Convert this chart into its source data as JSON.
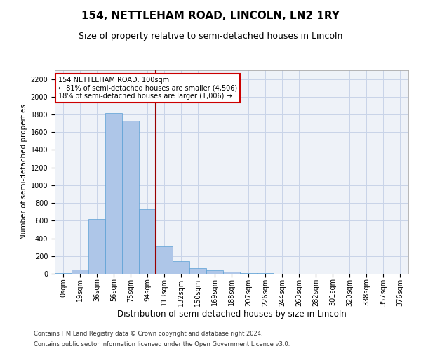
{
  "title": "154, NETTLEHAM ROAD, LINCOLN, LN2 1RY",
  "subtitle": "Size of property relative to semi-detached houses in Lincoln",
  "xlabel": "Distribution of semi-detached houses by size in Lincoln",
  "ylabel": "Number of semi-detached properties",
  "bar_labels": [
    "0sqm",
    "19sqm",
    "36sqm",
    "56sqm",
    "75sqm",
    "94sqm",
    "113sqm",
    "132sqm",
    "150sqm",
    "169sqm",
    "188sqm",
    "207sqm",
    "226sqm",
    "244sqm",
    "263sqm",
    "282sqm",
    "301sqm",
    "320sqm",
    "338sqm",
    "357sqm",
    "376sqm"
  ],
  "bar_values": [
    10,
    50,
    620,
    1820,
    1730,
    730,
    310,
    140,
    60,
    40,
    20,
    8,
    5,
    3,
    2,
    1,
    1,
    1,
    0,
    0,
    0
  ],
  "bar_color": "#aec6e8",
  "bar_edgecolor": "#5a9fd4",
  "red_line_x": 5.5,
  "annotation_text": "154 NETTLEHAM ROAD: 100sqm\n← 81% of semi-detached houses are smaller (4,506)\n18% of semi-detached houses are larger (1,006) →",
  "annotation_box_color": "#ffffff",
  "annotation_box_edgecolor": "#cc0000",
  "ylim": [
    0,
    2300
  ],
  "yticks": [
    0,
    200,
    400,
    600,
    800,
    1000,
    1200,
    1400,
    1600,
    1800,
    2000,
    2200
  ],
  "footer_line1": "Contains HM Land Registry data © Crown copyright and database right 2024.",
  "footer_line2": "Contains public sector information licensed under the Open Government Licence v3.0.",
  "background_color": "#ffffff",
  "plot_bg_color": "#eef2f8",
  "grid_color": "#c8d4e8",
  "title_fontsize": 11,
  "subtitle_fontsize": 9,
  "ylabel_fontsize": 7.5,
  "xlabel_fontsize": 8.5,
  "tick_fontsize": 7,
  "annotation_fontsize": 7,
  "footer_fontsize": 6
}
